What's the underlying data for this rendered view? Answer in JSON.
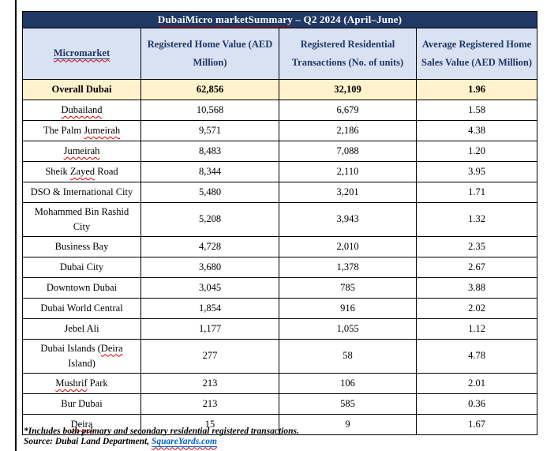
{
  "colors": {
    "title_bg": "#1F3864",
    "title_fg": "#FFFFFF",
    "header_bg": "#D9E2F3",
    "header_fg": "#1F3864",
    "highlight_bg": "#FFF2CC",
    "link": "#0563C1",
    "squiggle": "#D40000"
  },
  "title": {
    "marked": "DubaiMicro marketSummary",
    "rest": " – Q2 2024 (April–June)"
  },
  "table": {
    "header": [
      {
        "label": "Micromarket"
      },
      {
        "label": "Registered Home Value (AED Million)"
      },
      {
        "label": "Registered Residential Transactions (No. of units)"
      },
      {
        "label": "Average Registered Home Sales Value (AED Million)"
      }
    ],
    "rows": [
      {
        "name": "Overall Dubai",
        "value": "62,856",
        "transactions": "32,109",
        "avg": "1.96",
        "highlight": true
      },
      {
        "name": "Dubailand",
        "value": "10,568",
        "transactions": "6,679",
        "avg": "1.58",
        "squiggle": "Dubailand"
      },
      {
        "name": "The Palm Jumeirah",
        "value": "9,571",
        "transactions": "2,186",
        "avg": "4.38",
        "squiggle": "Jumeirah"
      },
      {
        "name": "Jumeirah",
        "value": "8,483",
        "transactions": "7,088",
        "avg": "1.20",
        "squiggle": "Jumeirah"
      },
      {
        "name": "Sheik Zayed Road",
        "value": "8,344",
        "transactions": "2,110",
        "avg": "3.95",
        "squiggle": "Zayed"
      },
      {
        "name": "DSO & International City",
        "value": "5,480",
        "transactions": "3,201",
        "avg": "1.71"
      },
      {
        "name": "Mohammed Bin Rashid City",
        "lines": [
          "Mohammed Bin Rashid",
          "City"
        ],
        "value": "5,208",
        "transactions": "3,943",
        "avg": "1.32"
      },
      {
        "name": "Business Bay",
        "value": "4,728",
        "transactions": "2,010",
        "avg": "2.35"
      },
      {
        "name": "Dubai City",
        "value": "3,680",
        "transactions": "1,378",
        "avg": "2.67"
      },
      {
        "name": "Downtown Dubai",
        "value": "3,045",
        "transactions": "785",
        "avg": "3.88"
      },
      {
        "name": "Dubai World Central",
        "value": "1,854",
        "transactions": "916",
        "avg": "2.02"
      },
      {
        "name": "Jebel Ali",
        "value": "1,177",
        "transactions": "1,055",
        "avg": "1.12"
      },
      {
        "name": "Dubai Islands (Deira Island)",
        "lines": [
          "Dubai Islands (Deira",
          "Island)"
        ],
        "value": "277",
        "transactions": "58",
        "avg": "4.78",
        "squiggle": "Deira"
      },
      {
        "name": "Mushrif Park",
        "value": "213",
        "transactions": "106",
        "avg": "2.01",
        "squiggle": "Mushrif"
      },
      {
        "name": "Bur Dubai",
        "value": "213",
        "transactions": "585",
        "avg": "0.36"
      },
      {
        "name": "Deira",
        "value": "15",
        "transactions": "9",
        "avg": "1.67",
        "squiggle": "Deira"
      }
    ]
  },
  "footnote": "*Includes both primary and secondary residential registered transactions.",
  "source": {
    "prefix": "Source: Dubai Land Department, ",
    "link_label": "SquareYards.com"
  }
}
